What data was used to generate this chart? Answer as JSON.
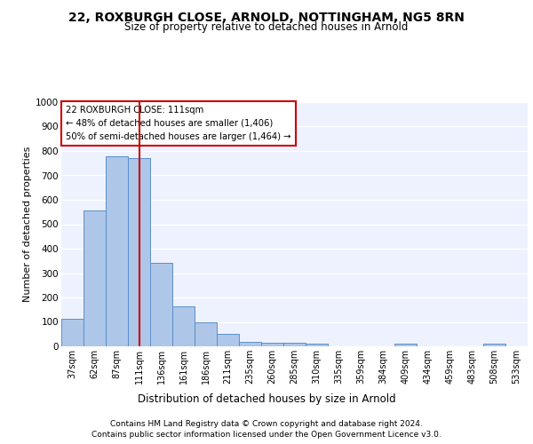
{
  "title1": "22, ROXBURGH CLOSE, ARNOLD, NOTTINGHAM, NG5 8RN",
  "title2": "Size of property relative to detached houses in Arnold",
  "xlabel": "Distribution of detached houses by size in Arnold",
  "ylabel": "Number of detached properties",
  "categories": [
    "37sqm",
    "62sqm",
    "87sqm",
    "111sqm",
    "136sqm",
    "161sqm",
    "186sqm",
    "211sqm",
    "235sqm",
    "260sqm",
    "285sqm",
    "310sqm",
    "335sqm",
    "359sqm",
    "384sqm",
    "409sqm",
    "434sqm",
    "459sqm",
    "483sqm",
    "508sqm",
    "533sqm"
  ],
  "values": [
    113,
    558,
    778,
    770,
    343,
    163,
    98,
    52,
    18,
    14,
    14,
    10,
    0,
    0,
    0,
    11,
    0,
    0,
    0,
    11,
    0
  ],
  "bar_color": "#aec6e8",
  "bar_edge_color": "#5b8fc9",
  "vline_x": 3,
  "vline_color": "#cc0000",
  "annotation_title": "22 ROXBURGH CLOSE: 111sqm",
  "annotation_line1": "← 48% of detached houses are smaller (1,406)",
  "annotation_line2": "50% of semi-detached houses are larger (1,464) →",
  "annotation_box_color": "#cc0000",
  "ylim": [
    0,
    1000
  ],
  "yticks": [
    0,
    100,
    200,
    300,
    400,
    500,
    600,
    700,
    800,
    900,
    1000
  ],
  "footer_line1": "Contains HM Land Registry data © Crown copyright and database right 2024.",
  "footer_line2": "Contains public sector information licensed under the Open Government Licence v3.0.",
  "bg_color": "#eef2ff",
  "grid_color": "#ffffff",
  "title1_fontsize": 10,
  "title2_fontsize": 8.5
}
